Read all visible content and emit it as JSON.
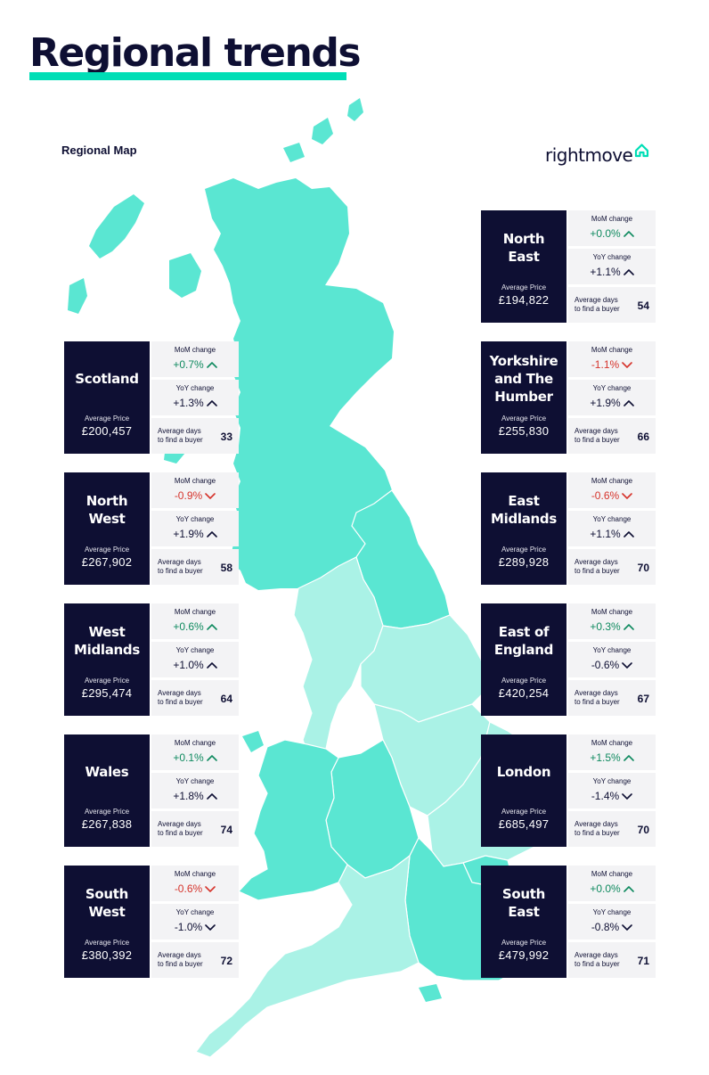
{
  "title": "Regional trends",
  "map_label": "Regional Map",
  "logo_text": "rightmove",
  "colors": {
    "navy": "#0e0f33",
    "accent": "#00deb6",
    "region_dark": "#5ae6d2",
    "region_light": "#aaf2e6",
    "up": "#0f8a5f",
    "down": "#d6342c"
  },
  "labels": {
    "mom": "MoM change",
    "yoy": "YoY change",
    "avg_price": "Average Price",
    "avg_days": "Average days\nto find a buyer"
  },
  "regions": [
    {
      "id": "scotland",
      "name": "Scotland",
      "price": "£200,457",
      "mom": "+0.7%",
      "mom_dir": "up",
      "yoy": "+1.3%",
      "yoy_dir": "up",
      "days": "33"
    },
    {
      "id": "north-west",
      "name": "North\nWest",
      "price": "£267,902",
      "mom": "-0.9%",
      "mom_dir": "down",
      "yoy": "+1.9%",
      "yoy_dir": "up",
      "days": "58"
    },
    {
      "id": "west-midlands",
      "name": "West\nMidlands",
      "price": "£295,474",
      "mom": "+0.6%",
      "mom_dir": "up",
      "yoy": "+1.0%",
      "yoy_dir": "up",
      "days": "64"
    },
    {
      "id": "wales",
      "name": "Wales",
      "price": "£267,838",
      "mom": "+0.1%",
      "mom_dir": "up",
      "yoy": "+1.8%",
      "yoy_dir": "up",
      "days": "74"
    },
    {
      "id": "south-west",
      "name": "South\nWest",
      "price": "£380,392",
      "mom": "-0.6%",
      "mom_dir": "down",
      "yoy": "-1.0%",
      "yoy_dir": "down",
      "days": "72"
    },
    {
      "id": "north-east",
      "name": "North\nEast",
      "price": "£194,822",
      "mom": "+0.0%",
      "mom_dir": "up",
      "yoy": "+1.1%",
      "yoy_dir": "up",
      "days": "54"
    },
    {
      "id": "yorkshire",
      "name": "Yorkshire\nand The\nHumber",
      "price": "£255,830",
      "mom": "-1.1%",
      "mom_dir": "down",
      "yoy": "+1.9%",
      "yoy_dir": "up",
      "days": "66"
    },
    {
      "id": "east-midlands",
      "name": "East\nMidlands",
      "price": "£289,928",
      "mom": "-0.6%",
      "mom_dir": "down",
      "yoy": "+1.1%",
      "yoy_dir": "up",
      "days": "70"
    },
    {
      "id": "east-of-england",
      "name": "East of\nEngland",
      "price": "£420,254",
      "mom": "+0.3%",
      "mom_dir": "up",
      "yoy": "-0.6%",
      "yoy_dir": "down",
      "days": "67"
    },
    {
      "id": "london",
      "name": "London",
      "price": "£685,497",
      "mom": "+1.5%",
      "mom_dir": "up",
      "yoy": "-1.4%",
      "yoy_dir": "down",
      "days": "70"
    },
    {
      "id": "south-east",
      "name": "South\nEast",
      "price": "£479,992",
      "mom": "+0.0%",
      "mom_dir": "up",
      "yoy": "-0.8%",
      "yoy_dir": "down",
      "days": "71"
    }
  ]
}
